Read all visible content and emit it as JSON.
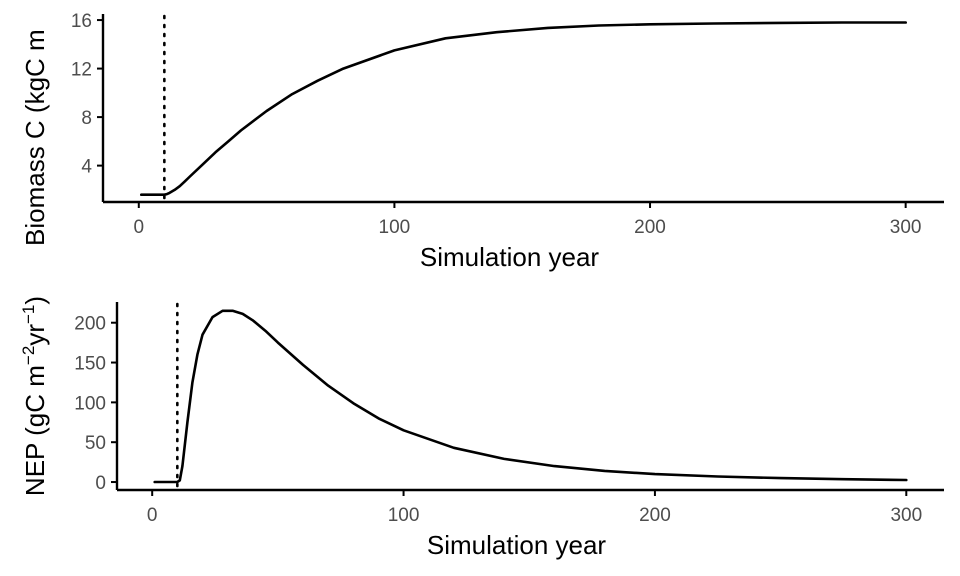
{
  "chart_data": [
    {
      "type": "line",
      "ylabel_prefix": "Biomass C (kgC m",
      "ylabel_sup": "",
      "ylabel_suffix": "",
      "xlabel": "Simulation year",
      "xlim": [
        -14,
        315
      ],
      "ylim": [
        1.0,
        16.5
      ],
      "xticks": [
        0,
        100,
        200,
        300
      ],
      "xtick_labels": [
        "0",
        "100",
        "200",
        "300"
      ],
      "yticks": [
        4,
        8,
        12,
        16
      ],
      "ytick_labels": [
        "4",
        "8",
        "12",
        "16"
      ],
      "vline_x": 10,
      "grid": false,
      "series": [
        {
          "x": [
            1,
            9,
            10,
            11,
            12,
            14,
            16,
            18,
            20,
            25,
            30,
            35,
            40,
            50,
            60,
            70,
            80,
            100,
            120,
            140,
            160,
            180,
            200,
            225,
            250,
            275,
            300
          ],
          "y": [
            1.6,
            1.6,
            1.6,
            1.65,
            1.75,
            2.0,
            2.3,
            2.7,
            3.1,
            4.1,
            5.1,
            6.0,
            6.9,
            8.5,
            9.9,
            11.0,
            12.0,
            13.5,
            14.5,
            15.0,
            15.35,
            15.55,
            15.65,
            15.72,
            15.77,
            15.8,
            15.8
          ]
        }
      ]
    },
    {
      "type": "line",
      "ylabel_prefix": "NEP (gC m",
      "ylabel_sup": "−2",
      "ylabel_mid": "yr",
      "ylabel_sup2": "−1",
      "ylabel_suffix": ")",
      "xlabel": "Simulation year",
      "xlim": [
        -14,
        315
      ],
      "ylim": [
        -10,
        226
      ],
      "xticks": [
        0,
        100,
        200,
        300
      ],
      "xtick_labels": [
        "0",
        "100",
        "200",
        "300"
      ],
      "yticks": [
        0,
        50,
        100,
        150,
        200
      ],
      "ytick_labels": [
        "0",
        "50",
        "100",
        "150",
        "200"
      ],
      "vline_x": 10,
      "grid": false,
      "series": [
        {
          "x": [
            1,
            10,
            11,
            12,
            14,
            16,
            18,
            20,
            24,
            28,
            32,
            36,
            40,
            45,
            50,
            60,
            70,
            80,
            90,
            100,
            120,
            140,
            160,
            180,
            200,
            225,
            250,
            275,
            300
          ],
          "y": [
            0,
            0,
            2,
            20,
            75,
            125,
            160,
            185,
            207,
            215,
            215,
            211,
            203,
            190,
            175,
            147,
            121,
            99,
            80,
            65,
            43,
            29,
            20,
            14,
            10,
            7,
            5,
            3.5,
            2.5
          ]
        }
      ]
    }
  ]
}
